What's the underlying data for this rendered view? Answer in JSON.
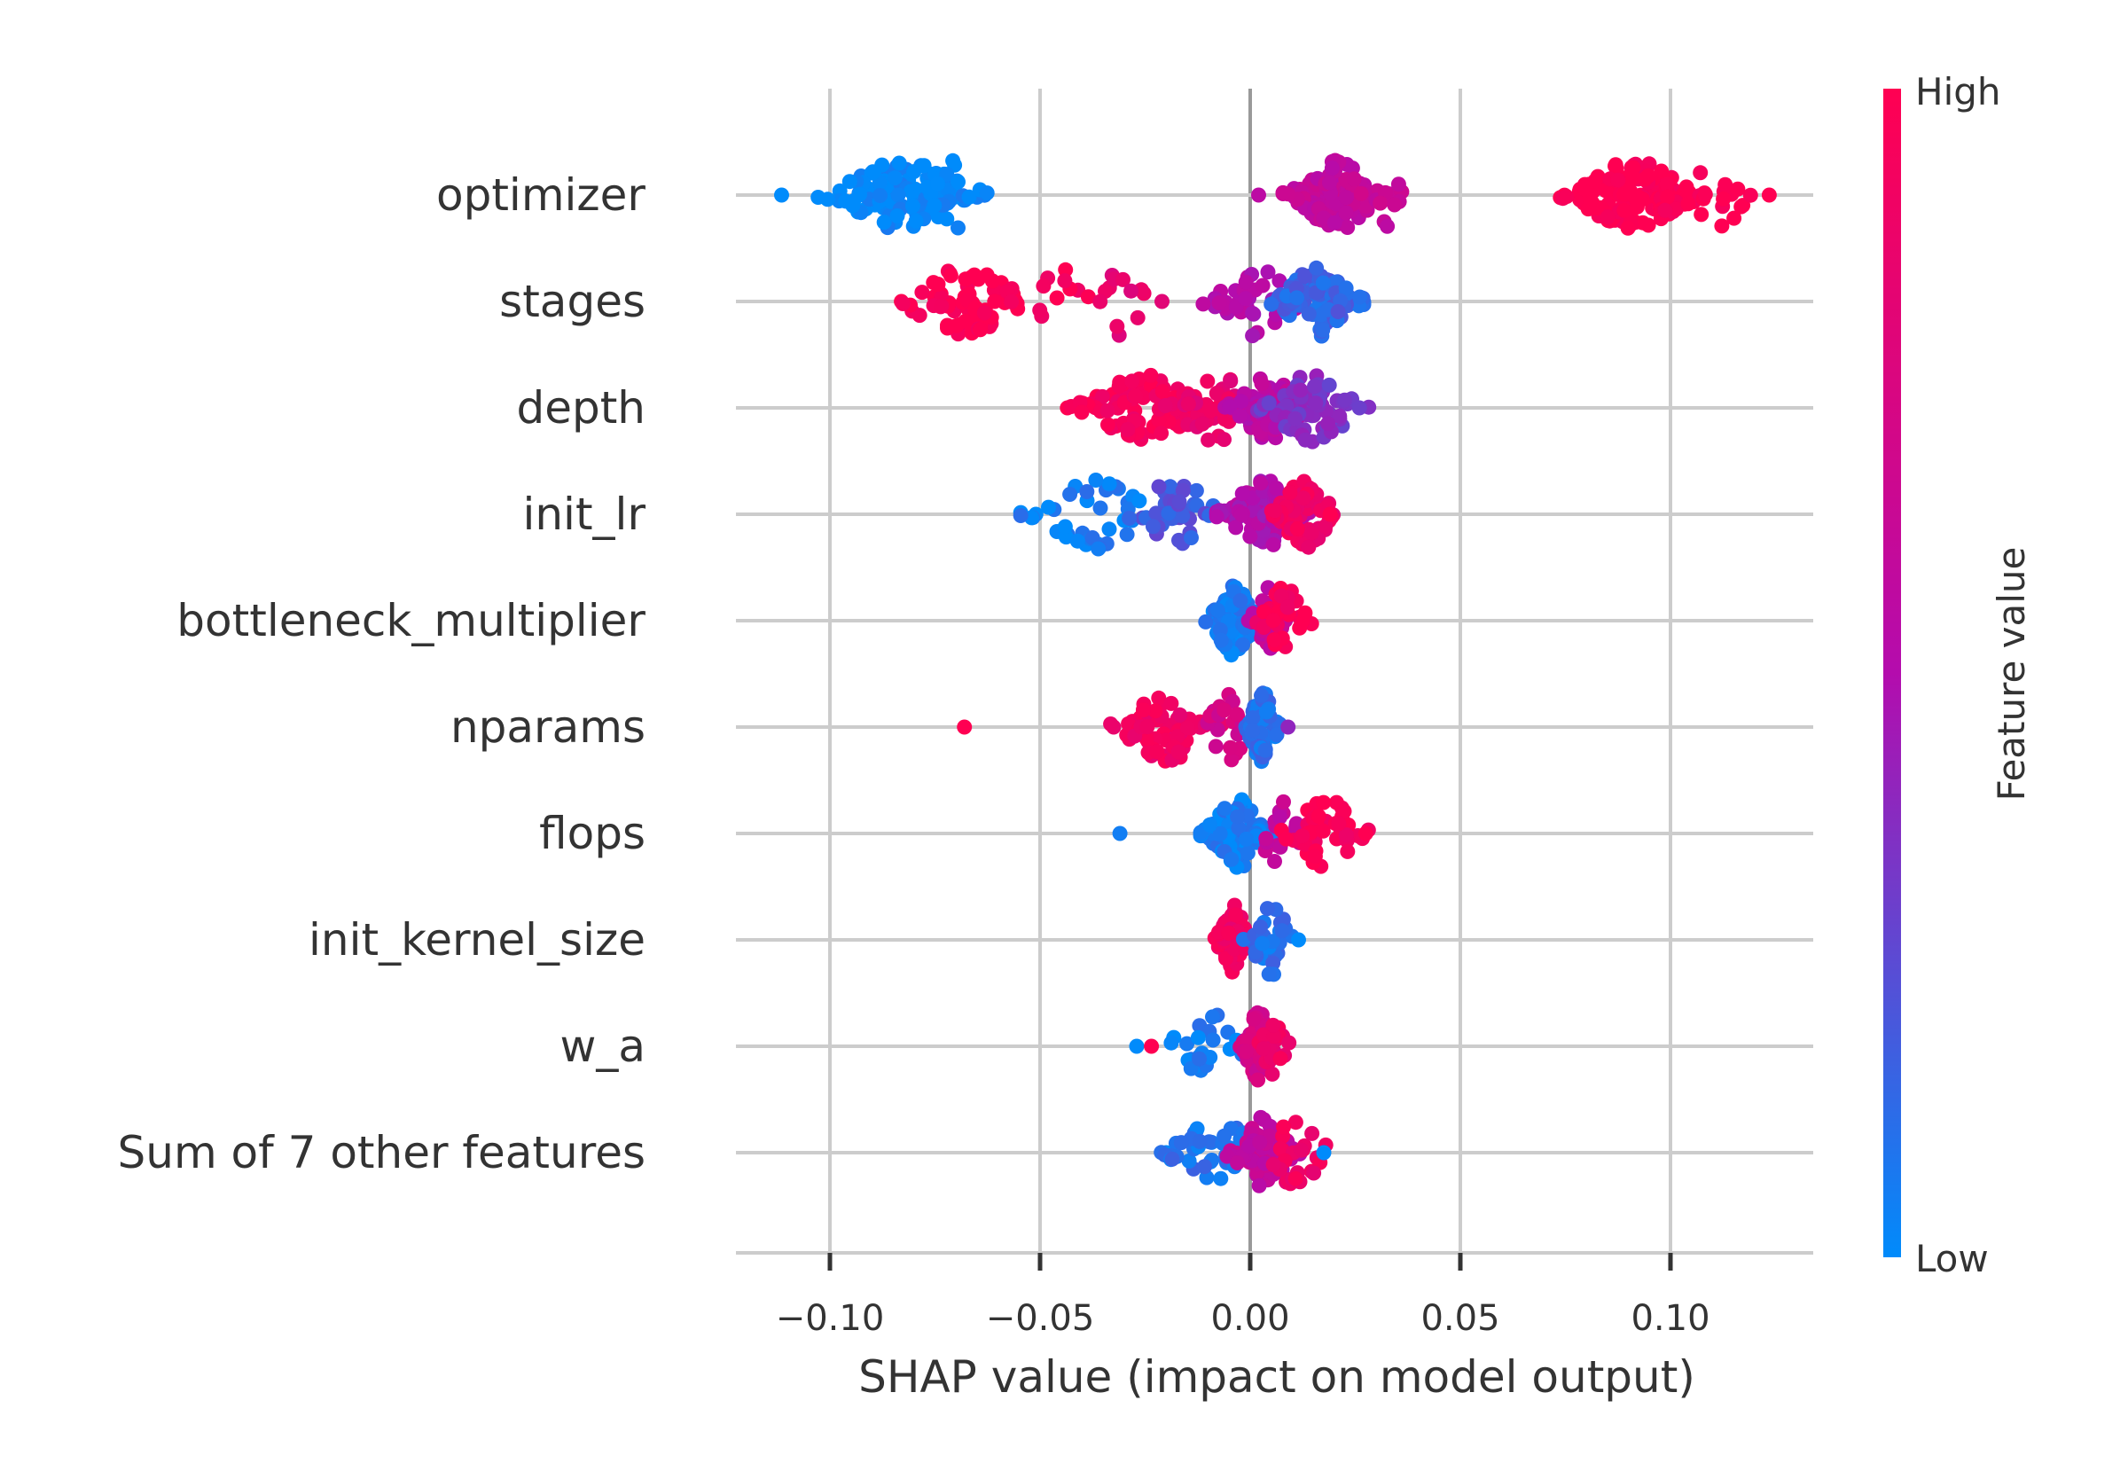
{
  "chart_data": {
    "type": "scatter",
    "subtype": "shap-beeswarm",
    "xlabel": "SHAP value (impact on model output)",
    "xlim": [
      -0.122,
      0.135
    ],
    "xticks": [
      -0.1,
      -0.05,
      0.0,
      0.05,
      0.1
    ],
    "xtick_labels": [
      "−0.10",
      "−0.05",
      "0.00",
      "0.05",
      "0.10"
    ],
    "grid": true,
    "features": [
      "optimizer",
      "stages",
      "depth",
      "init_lr",
      "bottleneck_multiplier",
      "nparams",
      "flops",
      "init_kernel_size",
      "w_a",
      "Sum of 7 other features"
    ],
    "colorbar": {
      "title": "Feature value",
      "high_label": "High",
      "low_label": "Low",
      "high_color": "#ff0052",
      "mid_color": "#b40cad",
      "low_color": "#008bfb"
    },
    "clusters": [
      {
        "feature": "optimizer",
        "points": [
          {
            "x": -0.1115,
            "v": 0.0
          },
          {
            "x": -0.083,
            "v": 0.0,
            "n": 130,
            "s": 0.009
          },
          {
            "x": -0.071,
            "v": 0.0,
            "n": 20,
            "s": 0.004
          },
          {
            "x": 0.002,
            "v": 0.55
          },
          {
            "x": 0.021,
            "v": 0.6,
            "n": 110,
            "s": 0.006
          },
          {
            "x": 0.033,
            "v": 0.62,
            "n": 8,
            "s": 0.003
          },
          {
            "x": 0.091,
            "v": 1.0,
            "n": 150,
            "s": 0.008
          },
          {
            "x": 0.111,
            "v": 1.0,
            "n": 15,
            "s": 0.005
          },
          {
            "x": 0.1235,
            "v": 1.0
          }
        ]
      },
      {
        "feature": "stages",
        "points": [
          {
            "x": -0.083,
            "v": 1.0
          },
          {
            "x": -0.068,
            "v": 1.0,
            "n": 70,
            "s": 0.008
          },
          {
            "x": -0.045,
            "v": 0.95,
            "n": 10,
            "s": 0.004
          },
          {
            "x": -0.031,
            "v": 0.82,
            "n": 12,
            "s": 0.004
          },
          {
            "x": -0.021,
            "v": 0.8
          },
          {
            "x": 0.002,
            "v": 0.5,
            "n": 40,
            "s": 0.006
          },
          {
            "x": 0.016,
            "v": 0.15,
            "n": 120,
            "s": 0.005
          }
        ]
      },
      {
        "feature": "depth",
        "points": [
          {
            "x": -0.0435,
            "v": 1.0
          },
          {
            "x": -0.025,
            "v": 0.95,
            "n": 90,
            "s": 0.008
          },
          {
            "x": -0.008,
            "v": 0.85,
            "n": 40,
            "s": 0.006
          },
          {
            "x": 0.005,
            "v": 0.55,
            "n": 80,
            "s": 0.005
          },
          {
            "x": 0.015,
            "v": 0.35,
            "n": 70,
            "s": 0.006
          },
          {
            "x": 0.026,
            "v": 0.3
          }
        ]
      },
      {
        "feature": "init_lr",
        "points": [
          {
            "x": -0.051,
            "v": 0.0
          },
          {
            "x": -0.037,
            "v": 0.05,
            "n": 40,
            "s": 0.008
          },
          {
            "x": -0.018,
            "v": 0.2,
            "n": 40,
            "s": 0.006
          },
          {
            "x": 0.003,
            "v": 0.5,
            "n": 80,
            "s": 0.005
          },
          {
            "x": 0.013,
            "v": 0.9,
            "n": 60,
            "s": 0.004
          },
          {
            "x": 0.019,
            "v": 1.0
          }
        ]
      },
      {
        "feature": "bottleneck_multiplier",
        "points": [
          {
            "x": -0.007,
            "v": 0.0
          },
          {
            "x": -0.004,
            "v": 0.05,
            "n": 80,
            "s": 0.003
          },
          {
            "x": 0.004,
            "v": 0.6,
            "n": 40,
            "s": 0.002
          },
          {
            "x": 0.008,
            "v": 0.95,
            "n": 30,
            "s": 0.003
          },
          {
            "x": 0.0125,
            "v": 1.0
          }
        ]
      },
      {
        "feature": "nparams",
        "points": [
          {
            "x": -0.068,
            "v": 1.0
          },
          {
            "x": -0.0325,
            "v": 0.85
          },
          {
            "x": -0.02,
            "v": 0.9,
            "n": 60,
            "s": 0.006
          },
          {
            "x": -0.005,
            "v": 0.7,
            "n": 20,
            "s": 0.003
          },
          {
            "x": 0.003,
            "v": 0.1,
            "n": 70,
            "s": 0.002
          },
          {
            "x": 0.009,
            "v": 0.4
          }
        ]
      },
      {
        "feature": "flops",
        "points": [
          {
            "x": -0.031,
            "v": 0.05
          },
          {
            "x": -0.011,
            "v": 0.1
          },
          {
            "x": -0.003,
            "v": 0.05,
            "n": 90,
            "s": 0.004
          },
          {
            "x": 0.007,
            "v": 0.6,
            "n": 20,
            "s": 0.003
          },
          {
            "x": 0.018,
            "v": 0.95,
            "n": 40,
            "s": 0.005
          },
          {
            "x": 0.0275,
            "v": 1.0
          }
        ]
      },
      {
        "feature": "init_kernel_size",
        "points": [
          {
            "x": -0.004,
            "v": 0.9,
            "n": 80,
            "s": 0.002
          },
          {
            "x": 0.005,
            "v": 0.1,
            "n": 30,
            "s": 0.003
          },
          {
            "x": 0.0115,
            "v": 0.0
          }
        ]
      },
      {
        "feature": "w_a",
        "points": [
          {
            "x": -0.027,
            "v": 0.0
          },
          {
            "x": -0.0235,
            "v": 1.0
          },
          {
            "x": -0.01,
            "v": 0.05,
            "n": 25,
            "s": 0.005
          },
          {
            "x": 0.002,
            "v": 0.7,
            "n": 60,
            "s": 0.002
          },
          {
            "x": 0.005,
            "v": 0.9,
            "n": 20,
            "s": 0.002
          }
        ]
      },
      {
        "feature": "Sum of 7 other features",
        "points": [
          {
            "x": -0.02,
            "v": 0.0
          },
          {
            "x": -0.008,
            "v": 0.1,
            "n": 50,
            "s": 0.006
          },
          {
            "x": 0.003,
            "v": 0.6,
            "n": 90,
            "s": 0.004
          },
          {
            "x": 0.011,
            "v": 0.9,
            "n": 25,
            "s": 0.004
          },
          {
            "x": 0.0175,
            "v": 0.0
          }
        ]
      }
    ]
  }
}
